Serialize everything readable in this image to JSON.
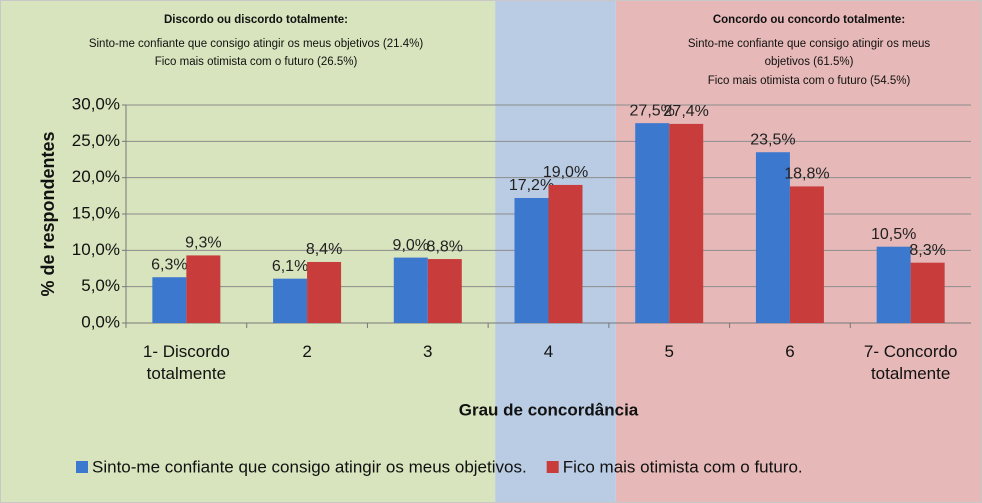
{
  "chart_data": {
    "type": "bar",
    "annotations": [
      {
        "lines": [
          "Discordo ou discordo totalmente:",
          "Sinto-me confiante que consigo atingir os meus objetivos (21.4%)",
          "Fico mais otimista com o futuro (26.5%)"
        ]
      },
      {
        "lines": [
          "Concordo ou concordo totalmente:",
          "Sinto-me confiante que consigo atingir os meus",
          "objetivos (61.5%)",
          "Fico mais otimista com o futuro (54.5%)"
        ]
      }
    ],
    "x_label": "Grau de concordância",
    "y_label": "% de respondentes",
    "categories": [
      "1- Discordo totalmente",
      "2",
      "3",
      "4",
      "5",
      "6",
      "7- Concordo totalmente"
    ],
    "series": [
      {
        "name": "Sinto-me confiante que consigo atingir os meus objetivos.",
        "color": "#3d78cf",
        "values": [
          6.3,
          6.1,
          9.0,
          17.2,
          27.5,
          23.5,
          10.5
        ],
        "value_labels": [
          "6,3%",
          "6,1%",
          "9,0%",
          "17,2%",
          "27,5%",
          "23,5%",
          "10,5%"
        ]
      },
      {
        "name": "Fico mais otimista com o futuro.",
        "color": "#c83d3b",
        "values": [
          9.3,
          8.4,
          8.8,
          19.0,
          27.4,
          18.8,
          8.3
        ],
        "value_labels": [
          "9,3%",
          "8,4%",
          "8,8%",
          "19,0%",
          "27,4%",
          "18,8%",
          "8,3%"
        ]
      }
    ],
    "ylim": [
      0,
      30
    ],
    "yticks": [
      {
        "value": 0,
        "label": "0,0%"
      },
      {
        "value": 5,
        "label": "5,0%"
      },
      {
        "value": 10,
        "label": "10,0%"
      },
      {
        "value": 15,
        "label": "15,0%"
      },
      {
        "value": 20,
        "label": "20,0%"
      },
      {
        "value": 25,
        "label": "25,0%"
      },
      {
        "value": 30,
        "label": "30,0%"
      }
    ],
    "grid": true,
    "legend": "bottom"
  }
}
